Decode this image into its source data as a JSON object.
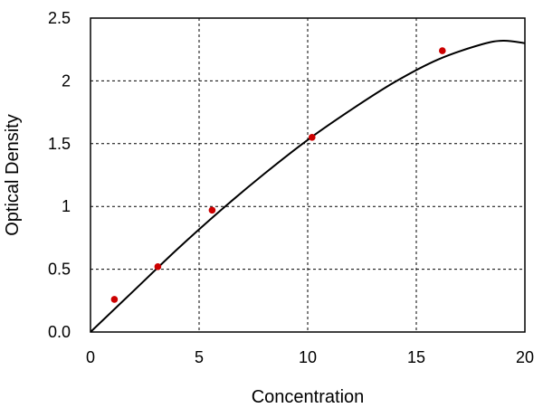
{
  "chart_data": {
    "type": "scatter",
    "title": "",
    "xlabel": "Concentration",
    "ylabel": "Optical Density",
    "xlim": [
      0,
      20
    ],
    "ylim": [
      0,
      2.5
    ],
    "x_ticks": [
      "0",
      "5",
      "10",
      "15",
      "20"
    ],
    "y_ticks": [
      "0.0",
      "0.5",
      "1",
      "1.5",
      "2",
      "2.5"
    ],
    "grid": "dashed",
    "series": [
      {
        "kind": "points",
        "color": "#cc0000",
        "x": [
          1.1,
          3.1,
          5.6,
          10.2,
          16.2
        ],
        "y": [
          0.26,
          0.52,
          0.97,
          1.55,
          2.24
        ]
      },
      {
        "kind": "fit-curve",
        "color": "#000000",
        "x": [
          0,
          2,
          4,
          6,
          8,
          10,
          12,
          14,
          16,
          18,
          19,
          20
        ],
        "y": [
          0.0,
          0.33,
          0.66,
          0.97,
          1.26,
          1.53,
          1.77,
          1.99,
          2.17,
          2.29,
          2.32,
          2.3
        ]
      }
    ]
  }
}
